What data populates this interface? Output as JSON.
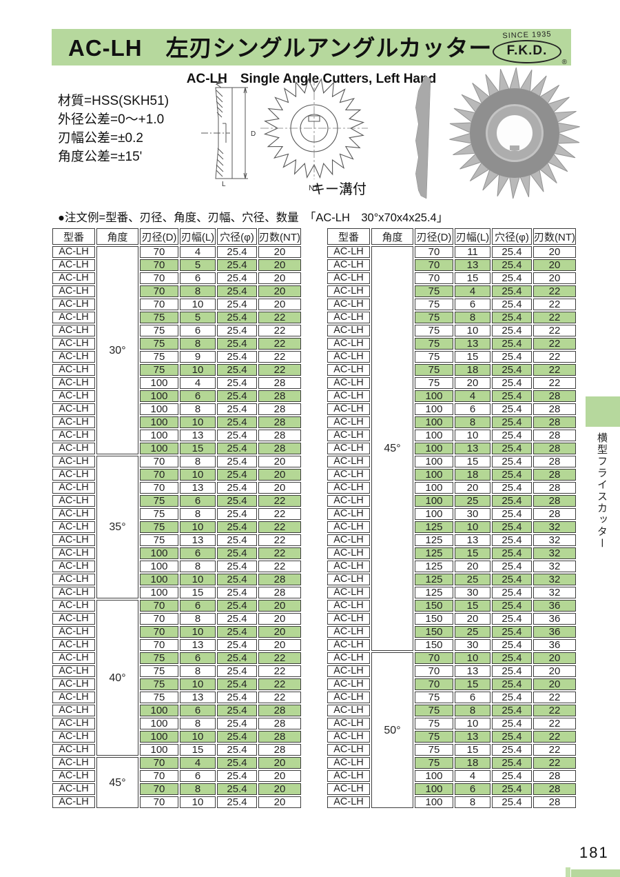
{
  "header": {
    "title": "AC-LH　左刃シングルアングルカッター",
    "subtitle": "AC-LH　Single Angle Cutters, Left Hand",
    "logo": {
      "since": "SINCE 1935",
      "name": "F.K.D.",
      "reg": "®"
    }
  },
  "specs": [
    "材質=HSS(SKH51)",
    "外径公差=0〜+1.0",
    "刃幅公差=±0.2",
    "角度公差=±15'"
  ],
  "diagram_labels": {
    "width": "L",
    "diameter": "D",
    "teeth": "NT",
    "keyway": "キー溝付"
  },
  "order_example": "●注文例=型番、刃径、角度、刃幅、穴径、数量　「AC-LH　30°x70x4x25.4」",
  "sidebar": {
    "tab_label": "横型フライスカッター"
  },
  "page": {
    "number": "181"
  },
  "colors": {
    "accent_green": "#b6d89d",
    "row_green": "#b4d795",
    "border": "#3c3c3c"
  },
  "table": {
    "headers": [
      "型番",
      "角度",
      "刃径(D)",
      "刃幅(L)",
      "穴径(φ)",
      "刃数(NT)"
    ],
    "model": "AC-LH",
    "left_groups": [
      {
        "angle": "30°",
        "rows": [
          [
            "70",
            "4",
            "25.4",
            "20",
            0
          ],
          [
            "70",
            "5",
            "25.4",
            "20",
            1
          ],
          [
            "70",
            "6",
            "25.4",
            "20",
            0
          ],
          [
            "70",
            "8",
            "25.4",
            "20",
            1
          ],
          [
            "70",
            "10",
            "25.4",
            "20",
            0
          ],
          [
            "75",
            "5",
            "25.4",
            "22",
            1
          ],
          [
            "75",
            "6",
            "25.4",
            "22",
            0
          ],
          [
            "75",
            "8",
            "25.4",
            "22",
            1
          ],
          [
            "75",
            "9",
            "25.4",
            "22",
            0
          ],
          [
            "75",
            "10",
            "25.4",
            "22",
            1
          ],
          [
            "100",
            "4",
            "25.4",
            "28",
            0
          ],
          [
            "100",
            "6",
            "25.4",
            "28",
            1
          ],
          [
            "100",
            "8",
            "25.4",
            "28",
            0
          ],
          [
            "100",
            "10",
            "25.4",
            "28",
            1
          ],
          [
            "100",
            "13",
            "25.4",
            "28",
            0
          ],
          [
            "100",
            "15",
            "25.4",
            "28",
            1
          ]
        ]
      },
      {
        "angle": "35°",
        "rows": [
          [
            "70",
            "8",
            "25.4",
            "20",
            0
          ],
          [
            "70",
            "10",
            "25.4",
            "20",
            1
          ],
          [
            "70",
            "13",
            "25.4",
            "20",
            0
          ],
          [
            "75",
            "6",
            "25.4",
            "22",
            1
          ],
          [
            "75",
            "8",
            "25.4",
            "22",
            0
          ],
          [
            "75",
            "10",
            "25.4",
            "22",
            1
          ],
          [
            "75",
            "13",
            "25.4",
            "22",
            0
          ],
          [
            "100",
            "6",
            "25.4",
            "22",
            1
          ],
          [
            "100",
            "8",
            "25.4",
            "22",
            0
          ],
          [
            "100",
            "10",
            "25.4",
            "28",
            1
          ],
          [
            "100",
            "15",
            "25.4",
            "28",
            0
          ]
        ]
      },
      {
        "angle": "40°",
        "rows": [
          [
            "70",
            "6",
            "25.4",
            "20",
            1
          ],
          [
            "70",
            "8",
            "25.4",
            "20",
            0
          ],
          [
            "70",
            "10",
            "25.4",
            "20",
            1
          ],
          [
            "70",
            "13",
            "25.4",
            "20",
            0
          ],
          [
            "75",
            "6",
            "25.4",
            "22",
            1
          ],
          [
            "75",
            "8",
            "25.4",
            "22",
            0
          ],
          [
            "75",
            "10",
            "25.4",
            "22",
            1
          ],
          [
            "75",
            "13",
            "25.4",
            "22",
            0
          ],
          [
            "100",
            "6",
            "25.4",
            "28",
            1
          ],
          [
            "100",
            "8",
            "25.4",
            "28",
            0
          ],
          [
            "100",
            "10",
            "25.4",
            "28",
            1
          ],
          [
            "100",
            "15",
            "25.4",
            "28",
            0
          ]
        ]
      },
      {
        "angle": "45°",
        "rows": [
          [
            "70",
            "4",
            "25.4",
            "20",
            1
          ],
          [
            "70",
            "6",
            "25.4",
            "20",
            0
          ],
          [
            "70",
            "8",
            "25.4",
            "20",
            1
          ],
          [
            "70",
            "10",
            "25.4",
            "20",
            0
          ]
        ]
      }
    ],
    "right_groups": [
      {
        "angle": "45°",
        "rows": [
          [
            "70",
            "11",
            "25.4",
            "20",
            0
          ],
          [
            "70",
            "13",
            "25.4",
            "20",
            1
          ],
          [
            "70",
            "15",
            "25.4",
            "20",
            0
          ],
          [
            "75",
            "4",
            "25.4",
            "22",
            1
          ],
          [
            "75",
            "6",
            "25.4",
            "22",
            0
          ],
          [
            "75",
            "8",
            "25.4",
            "22",
            1
          ],
          [
            "75",
            "10",
            "25.4",
            "22",
            0
          ],
          [
            "75",
            "13",
            "25.4",
            "22",
            1
          ],
          [
            "75",
            "15",
            "25.4",
            "22",
            0
          ],
          [
            "75",
            "18",
            "25.4",
            "22",
            1
          ],
          [
            "75",
            "20",
            "25.4",
            "22",
            0
          ],
          [
            "100",
            "4",
            "25.4",
            "28",
            1
          ],
          [
            "100",
            "6",
            "25.4",
            "28",
            0
          ],
          [
            "100",
            "8",
            "25.4",
            "28",
            1
          ],
          [
            "100",
            "10",
            "25.4",
            "28",
            0
          ],
          [
            "100",
            "13",
            "25.4",
            "28",
            1
          ],
          [
            "100",
            "15",
            "25.4",
            "28",
            0
          ],
          [
            "100",
            "18",
            "25.4",
            "28",
            1
          ],
          [
            "100",
            "20",
            "25.4",
            "28",
            0
          ],
          [
            "100",
            "25",
            "25.4",
            "28",
            1
          ],
          [
            "100",
            "30",
            "25.4",
            "28",
            0
          ],
          [
            "125",
            "10",
            "25.4",
            "32",
            1
          ],
          [
            "125",
            "13",
            "25.4",
            "32",
            0
          ],
          [
            "125",
            "15",
            "25.4",
            "32",
            1
          ],
          [
            "125",
            "20",
            "25.4",
            "32",
            0
          ],
          [
            "125",
            "25",
            "25.4",
            "32",
            1
          ],
          [
            "125",
            "30",
            "25.4",
            "32",
            0
          ],
          [
            "150",
            "15",
            "25.4",
            "36",
            1
          ],
          [
            "150",
            "20",
            "25.4",
            "36",
            0
          ],
          [
            "150",
            "25",
            "25.4",
            "36",
            1
          ],
          [
            "150",
            "30",
            "25.4",
            "36",
            0
          ]
        ]
      },
      {
        "angle": "50°",
        "rows": [
          [
            "70",
            "10",
            "25.4",
            "20",
            1
          ],
          [
            "70",
            "13",
            "25.4",
            "20",
            0
          ],
          [
            "70",
            "15",
            "25.4",
            "20",
            1
          ],
          [
            "75",
            "6",
            "25.4",
            "22",
            0
          ],
          [
            "75",
            "8",
            "25.4",
            "22",
            1
          ],
          [
            "75",
            "10",
            "25.4",
            "22",
            0
          ],
          [
            "75",
            "13",
            "25.4",
            "22",
            1
          ],
          [
            "75",
            "15",
            "25.4",
            "22",
            0
          ],
          [
            "75",
            "18",
            "25.4",
            "22",
            1
          ],
          [
            "100",
            "4",
            "25.4",
            "28",
            0
          ],
          [
            "100",
            "6",
            "25.4",
            "28",
            1
          ],
          [
            "100",
            "8",
            "25.4",
            "28",
            0
          ]
        ]
      }
    ]
  }
}
